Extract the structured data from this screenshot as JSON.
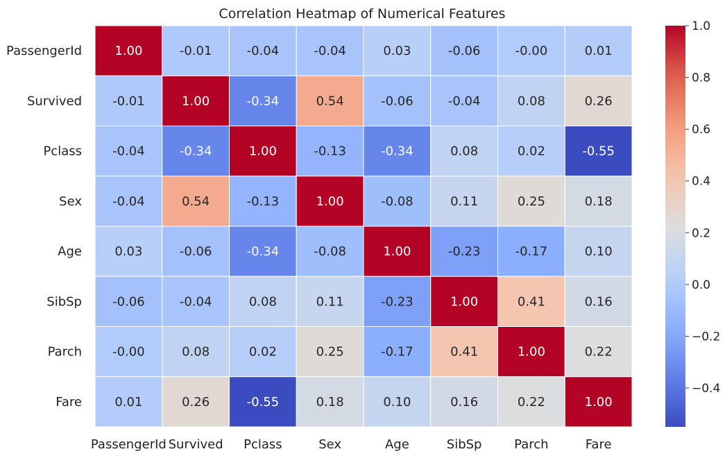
{
  "chart_data": {
    "type": "heatmap",
    "title": "Correlation Heatmap of Numerical Features",
    "rows": [
      "PassengerId",
      "Survived",
      "Pclass",
      "Sex",
      "Age",
      "SibSp",
      "Parch",
      "Fare"
    ],
    "columns": [
      "PassengerId",
      "Survived",
      "Pclass",
      "Sex",
      "Age",
      "SibSp",
      "Parch",
      "Fare"
    ],
    "values": [
      [
        1.0,
        -0.01,
        -0.04,
        -0.04,
        0.03,
        -0.06,
        -0.0,
        0.01
      ],
      [
        -0.01,
        1.0,
        -0.34,
        0.54,
        -0.06,
        -0.04,
        0.08,
        0.26
      ],
      [
        -0.04,
        -0.34,
        1.0,
        -0.13,
        -0.34,
        0.08,
        0.02,
        -0.55
      ],
      [
        -0.04,
        0.54,
        -0.13,
        1.0,
        -0.08,
        0.11,
        0.25,
        0.18
      ],
      [
        0.03,
        -0.06,
        -0.34,
        -0.08,
        1.0,
        -0.23,
        -0.17,
        0.1
      ],
      [
        -0.06,
        -0.04,
        0.08,
        0.11,
        -0.23,
        1.0,
        0.41,
        0.16
      ],
      [
        -0.0,
        0.08,
        0.02,
        0.25,
        -0.17,
        0.41,
        1.0,
        0.22
      ],
      [
        0.01,
        0.26,
        -0.55,
        0.18,
        0.1,
        0.16,
        0.22,
        1.0
      ]
    ],
    "value_format": "2 decimals",
    "colormap": "coolwarm",
    "color_range": [
      -0.55,
      1.0
    ],
    "colorbar": {
      "ticks": [
        1.0,
        0.8,
        0.6,
        0.4,
        0.2,
        0.0,
        -0.2,
        -0.4
      ],
      "tick_labels": [
        "1.0",
        "0.8",
        "0.6",
        "0.4",
        "0.2",
        "0.0",
        "−0.2",
        "−0.4"
      ]
    },
    "grid": false,
    "legend": "colorbar-right"
  }
}
